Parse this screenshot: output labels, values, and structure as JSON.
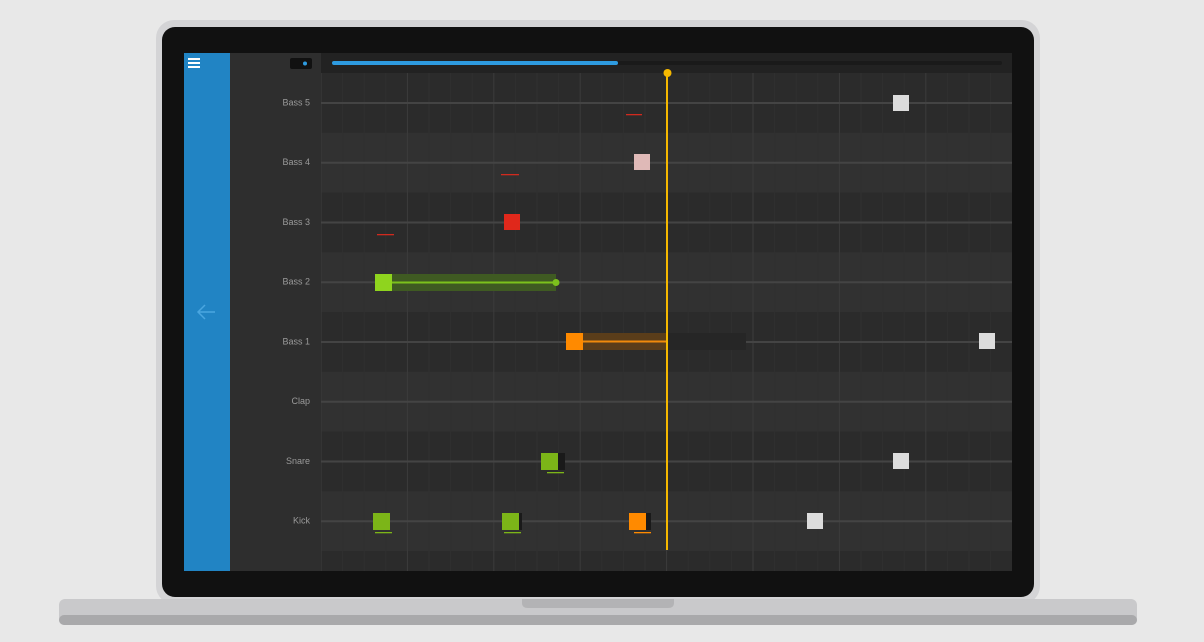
{
  "tracks": [
    "Bass 5",
    "Bass 4",
    "Bass 3",
    "Bass 2",
    "Bass 1",
    "Clap",
    "Snare",
    "Kick"
  ]
}
